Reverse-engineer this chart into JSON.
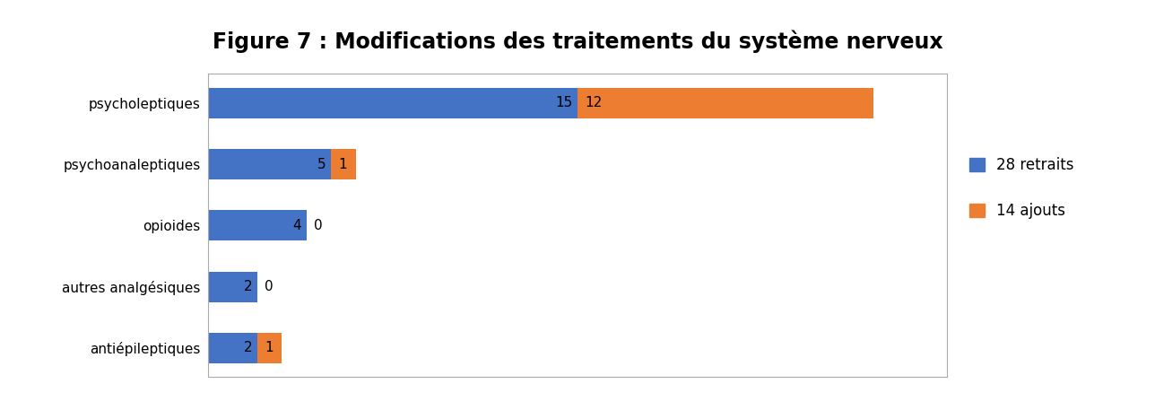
{
  "title": "Figure 7 : Modifications des traitements du système nerveux",
  "categories": [
    "psycholeptiques",
    "psychoanaleptiques",
    "opioides",
    "autres analgésiques",
    "antiépileptiques"
  ],
  "retraits": [
    15,
    5,
    4,
    2,
    2
  ],
  "ajouts": [
    12,
    1,
    0,
    0,
    1
  ],
  "color_retraits": "#4472C4",
  "color_ajouts": "#ED7D31",
  "legend_retraits": "28 retraits",
  "legend_ajouts": "14 ajouts",
  "xlim": [
    0,
    30
  ],
  "title_fontsize": 17,
  "label_fontsize": 11,
  "bar_label_fontsize": 11,
  "legend_fontsize": 12
}
